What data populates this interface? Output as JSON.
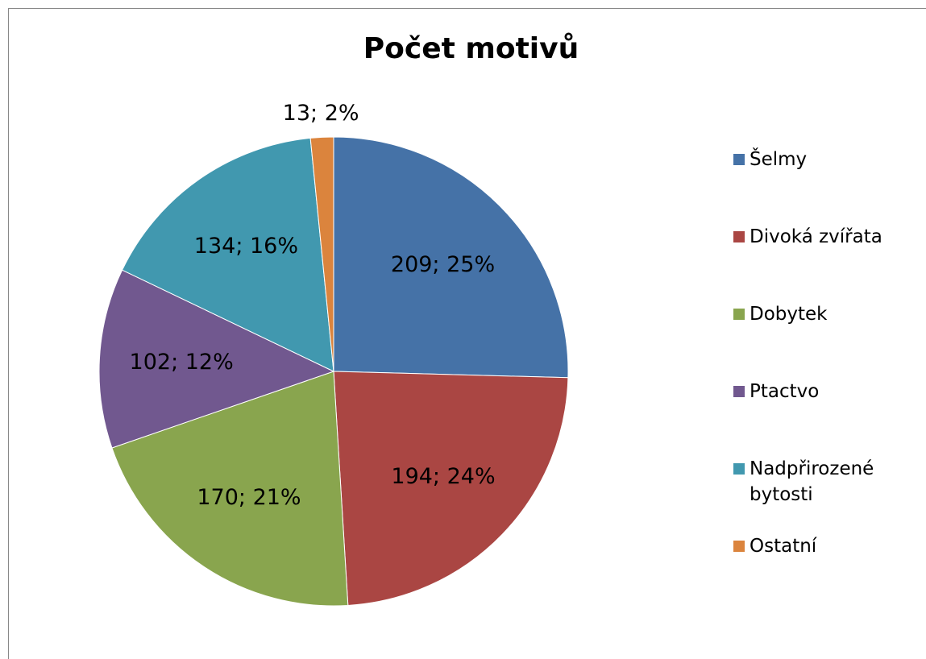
{
  "chart_data": {
    "type": "pie",
    "title": "Počet motivů",
    "categories": [
      "Šelmy",
      "Divoká zvířata",
      "Dobytek",
      "Ptactvo",
      "Nadpřirozené bytosti",
      "Ostatní"
    ],
    "values": [
      209,
      194,
      170,
      102,
      134,
      13
    ],
    "value_labels": [
      "209; 25%",
      "194; 24%",
      "170; 21%",
      "102; 12%",
      "134; 16%",
      "13;  2%"
    ],
    "colors": [
      "#4572a7",
      "#aa4643",
      "#89a54e",
      "#71588f",
      "#4198af",
      "#db843d"
    ],
    "legend": "right"
  }
}
